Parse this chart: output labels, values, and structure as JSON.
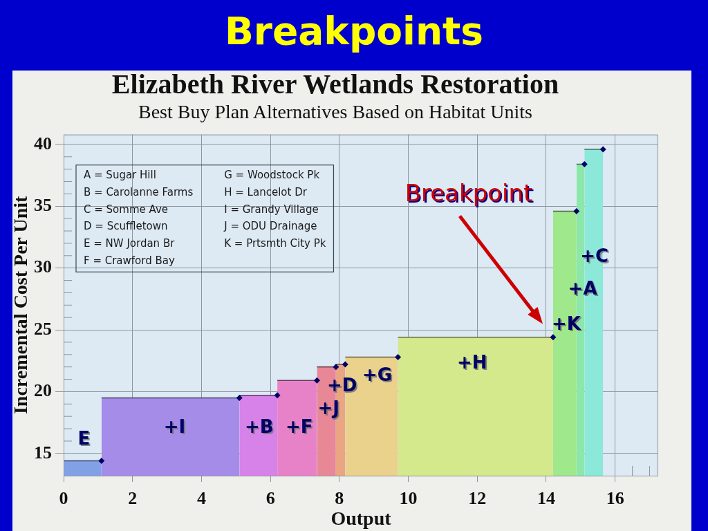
{
  "chart_data": {
    "type": "area",
    "title": "Elizabeth River Wetlands Restoration",
    "subtitle": "Best Buy Plan Alternatives Based on Habitat Units",
    "xlabel": "Output",
    "ylabel": "Incremental Cost Per Unit",
    "xlim": [
      0,
      17.25
    ],
    "xticks": [
      0,
      2,
      4,
      6,
      8,
      10,
      12,
      14,
      16,
      {
        "value": 16.5,
        "label": null
      },
      {
        "value": 17,
        "label": null
      }
    ],
    "ylim": [
      13.2,
      40.8
    ],
    "yticks": [
      15,
      {
        "value": 16,
        "label": null
      },
      {
        "value": 17,
        "label": null
      },
      {
        "value": 18,
        "label": null
      },
      {
        "value": 19,
        "label": null
      },
      20,
      {
        "value": 21,
        "label": null
      },
      {
        "value": 22,
        "label": null
      },
      {
        "value": 23,
        "label": null
      },
      {
        "value": 24,
        "label": null
      },
      25,
      {
        "value": 26,
        "label": null
      },
      {
        "value": 27,
        "label": null
      },
      {
        "value": 28,
        "label": null
      },
      {
        "value": 29,
        "label": null
      },
      30,
      {
        "value": 31,
        "label": null
      },
      {
        "value": 32,
        "label": null
      },
      {
        "value": 33,
        "label": null
      },
      {
        "value": 34,
        "label": null
      },
      35,
      {
        "value": 36,
        "label": null
      },
      {
        "value": 37,
        "label": null
      },
      {
        "value": 38,
        "label": null
      },
      {
        "value": 39,
        "label": null
      },
      40
    ],
    "grid": true,
    "series": [
      {
        "name": "E",
        "color": "#82a0e6",
        "x": [
          0,
          1.1
        ],
        "values": [
          14.4,
          14.4
        ]
      },
      {
        "name": "+I",
        "color": "#a48ce8",
        "x": [
          1.1,
          5.1
        ],
        "values": [
          19.5,
          19.5
        ]
      },
      {
        "name": "+B",
        "color": "#d682e8",
        "x": [
          5.1,
          6.2
        ],
        "values": [
          19.7,
          19.7
        ]
      },
      {
        "name": "+F",
        "color": "#e882c8",
        "x": [
          6.2,
          7.35
        ],
        "values": [
          20.9,
          20.9
        ]
      },
      {
        "name": "+J",
        "color": "#e88796",
        "x": [
          7.35,
          7.9
        ],
        "values": [
          22,
          22
        ]
      },
      {
        "name": "+D",
        "color": "#eaa582",
        "x": [
          7.9,
          8.17
        ],
        "values": [
          22.2,
          22.2
        ]
      },
      {
        "name": "+G",
        "color": "#ead28c",
        "x": [
          8.17,
          9.7
        ],
        "values": [
          22.8,
          22.8
        ]
      },
      {
        "name": "+H",
        "color": "#d4e88c",
        "x": [
          9.7,
          14.2
        ],
        "values": [
          24.4,
          24.4
        ]
      },
      {
        "name": "+K",
        "color": "#a0e88c",
        "x": [
          14.2,
          14.88
        ],
        "values": [
          34.6,
          34.6
        ]
      },
      {
        "name": "+A",
        "color": "#8ce8aa",
        "x": [
          14.88,
          15.11
        ],
        "values": [
          38.4,
          38.4
        ]
      },
      {
        "name": "+C",
        "color": "#8ce8d8",
        "x": [
          15.11,
          15.65
        ],
        "values": [
          39.6,
          39.6
        ]
      },
      {
        "type": "scatter",
        "color": "#000066",
        "marker": "diamond",
        "x": [
          1.1,
          5.1,
          6.2,
          7.35,
          7.9,
          8.17,
          9.7,
          14.2,
          14.88,
          15.11,
          15.65
        ],
        "values": [
          14.4,
          19.5,
          19.7,
          20.9,
          22,
          22.2,
          22.8,
          24.4,
          34.6,
          38.4,
          39.6
        ]
      }
    ],
    "annotations": [
      "Breakpoints",
      "A = Sugar Hill",
      "B = Carolanne Farms",
      "C = Somme Ave",
      "D = Scuffletown",
      "E = NW Jordan Br",
      "F = Crawford Bay",
      "G = Woodstock Pk",
      "H = Lancelot Dr",
      "I = Grandy Village",
      "J = ODU Drainage",
      "K = Prtsmth City Pk",
      "Breakpoint"
    ]
  }
}
